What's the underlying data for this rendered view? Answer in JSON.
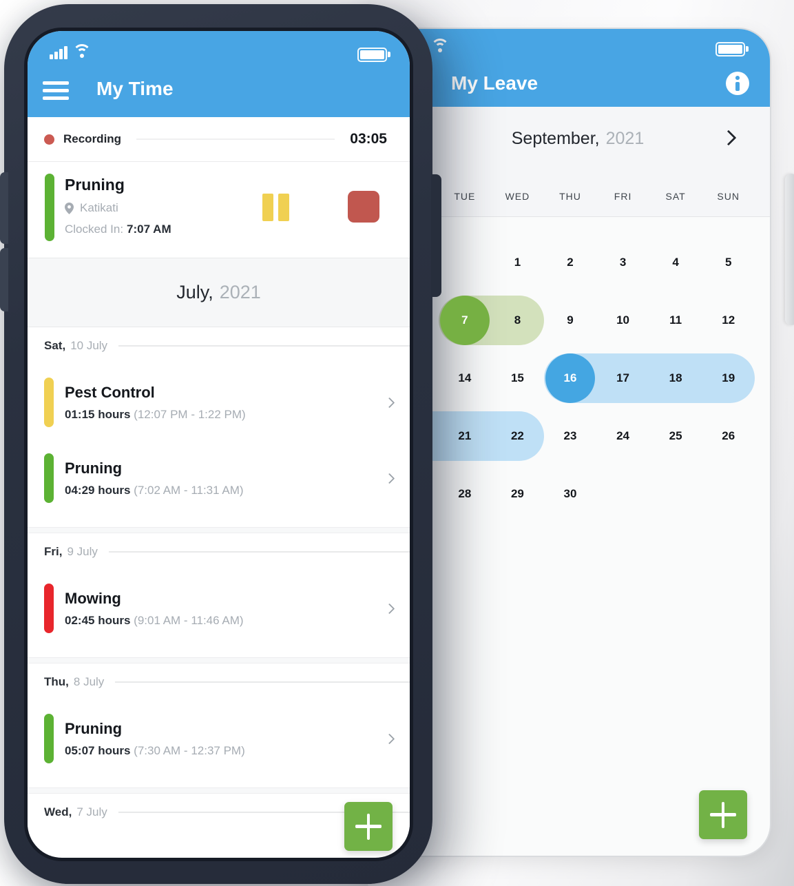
{
  "left_phone": {
    "header": {
      "title": "My Time"
    },
    "icons": {
      "menu": "hamburger-menu-icon",
      "signal": "cellular-signal-icon",
      "wifi": "wifi-icon",
      "battery": "battery-icon",
      "location": "location-pin-icon",
      "pause": "pause-icon",
      "stop": "stop-icon",
      "chevron": "chevron-right-icon",
      "add": "plus-icon"
    },
    "recording": {
      "label": "Recording",
      "timer": "03:05"
    },
    "current_task": {
      "name": "Pruning",
      "location": "Katikati",
      "clocked_in_label": "Clocked In:",
      "clocked_in_time": "7:07 AM",
      "bar_color": "#5cb234"
    },
    "month_header": {
      "month": "July,",
      "year": "2021"
    },
    "groups": [
      {
        "day": "Sat,",
        "date": "10 July",
        "entries": [
          {
            "name": "Pest Control",
            "hours": "01:15 hours",
            "range": "(12:07 PM - 1:22 PM)",
            "color": "#f0d052"
          },
          {
            "name": "Pruning",
            "hours": "04:29 hours",
            "range": "(7:02 AM - 11:31 AM)",
            "color": "#5cb234"
          }
        ]
      },
      {
        "day": "Fri,",
        "date": "9 July",
        "entries": [
          {
            "name": "Mowing",
            "hours": "02:45 hours",
            "range": "(9:01 AM - 11:46 AM)",
            "color": "#e8262c"
          }
        ]
      },
      {
        "day": "Thu,",
        "date": "8 July",
        "entries": [
          {
            "name": "Pruning",
            "hours": "05:07 hours",
            "range": "(7:30 AM - 12:37 PM)",
            "color": "#5cb234"
          }
        ]
      },
      {
        "day": "Wed,",
        "date": "7 July",
        "entries": []
      }
    ]
  },
  "right_phone": {
    "header": {
      "title": "My Leave"
    },
    "icons": {
      "info": "info-icon",
      "next": "chevron-right-icon",
      "add": "plus-icon"
    },
    "month_nav": {
      "month": "September,",
      "year": "2021"
    },
    "weekday_headers": [
      "",
      "TUE",
      "WED",
      "THU",
      "FRI",
      "SAT",
      "SUN"
    ],
    "pill_colors": {
      "green": "#d3e1bc",
      "blue": "#bfe0f6"
    },
    "circle_colors": {
      "green": "#76b043",
      "blue": "#44a6e2"
    },
    "weeks": [
      [
        {},
        {},
        {
          "day": "1"
        },
        {
          "day": "2"
        },
        {
          "day": "3"
        },
        {
          "day": "4"
        },
        {
          "day": "5"
        }
      ],
      [
        {},
        {
          "day": "7",
          "pill": "green",
          "pos": "start",
          "circle": "green"
        },
        {
          "day": "8",
          "pill": "green",
          "pos": "end"
        },
        {
          "day": "9"
        },
        {
          "day": "10"
        },
        {
          "day": "11"
        },
        {
          "day": "12"
        }
      ],
      [
        {},
        {
          "day": "14"
        },
        {
          "day": "15"
        },
        {
          "day": "16",
          "pill": "blue",
          "pos": "start",
          "circle": "blue"
        },
        {
          "day": "17",
          "pill": "blue",
          "pos": "mid"
        },
        {
          "day": "18",
          "pill": "blue",
          "pos": "mid"
        },
        {
          "day": "19",
          "pill": "blue",
          "pos": "end"
        }
      ],
      [
        {
          "pill": "blue",
          "pos": "mid"
        },
        {
          "day": "21",
          "pill": "blue",
          "pos": "mid"
        },
        {
          "day": "22",
          "pill": "blue",
          "pos": "end"
        },
        {
          "day": "23"
        },
        {
          "day": "24"
        },
        {
          "day": "25"
        },
        {
          "day": "26"
        }
      ],
      [
        {},
        {
          "day": "28"
        },
        {
          "day": "29"
        },
        {
          "day": "30"
        },
        {},
        {},
        {}
      ]
    ]
  },
  "colors": {
    "header_blue": "#48a5e4",
    "fab_green": "#72b246",
    "task_green": "#5cb234",
    "task_yellow": "#f0d052",
    "task_red": "#e8262c",
    "stop_red": "#c1574f",
    "recording_dot": "#cb5a52",
    "leave_green_solid": "#76b043",
    "leave_green_light": "#d3e1bc",
    "leave_blue_solid": "#44a6e2",
    "leave_blue_light": "#bfe0f6"
  }
}
